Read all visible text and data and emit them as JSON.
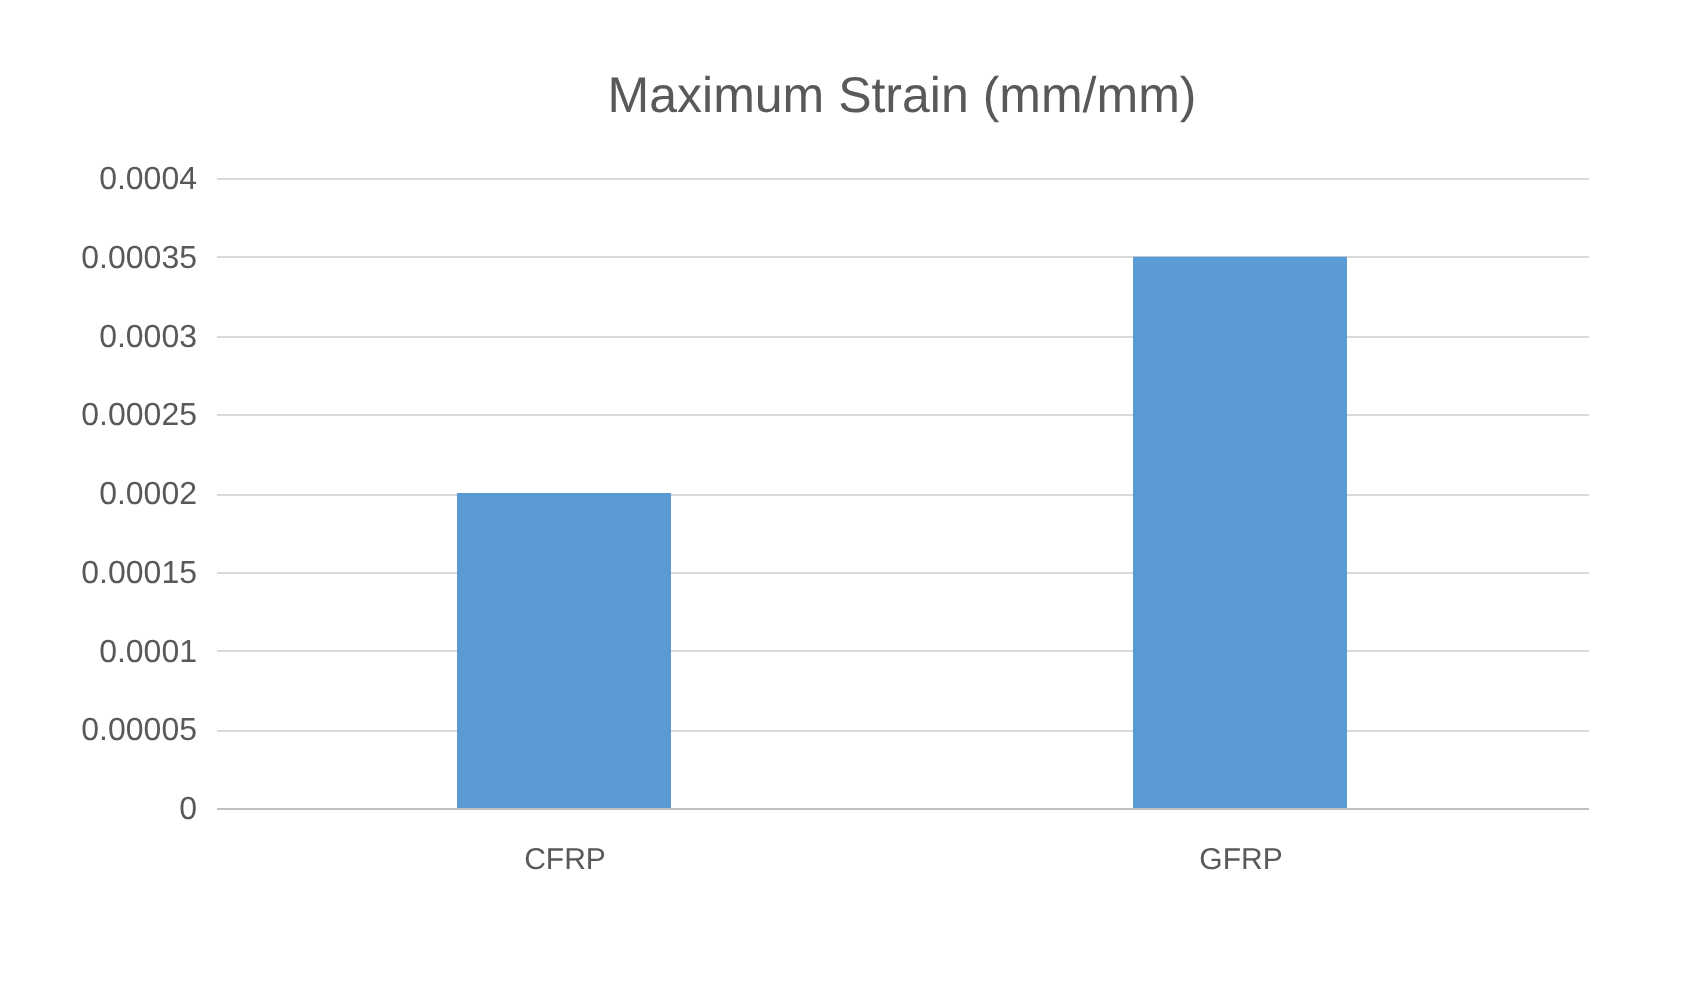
{
  "chart_data": {
    "type": "bar",
    "title": "Maximum Strain (mm/mm)",
    "categories": [
      "CFRP",
      "GFRP"
    ],
    "values": [
      0.0002,
      0.00035
    ],
    "color": "#5b9bd5",
    "ylim": [
      0,
      0.0004
    ],
    "yticks": [
      0,
      {
        "value": 5e-05,
        "label": "0.00005"
      },
      0.0001,
      0.00015,
      0.0002,
      0.00025,
      0.0003,
      0.00035,
      0.0004
    ],
    "grid": "y",
    "legend": false
  }
}
